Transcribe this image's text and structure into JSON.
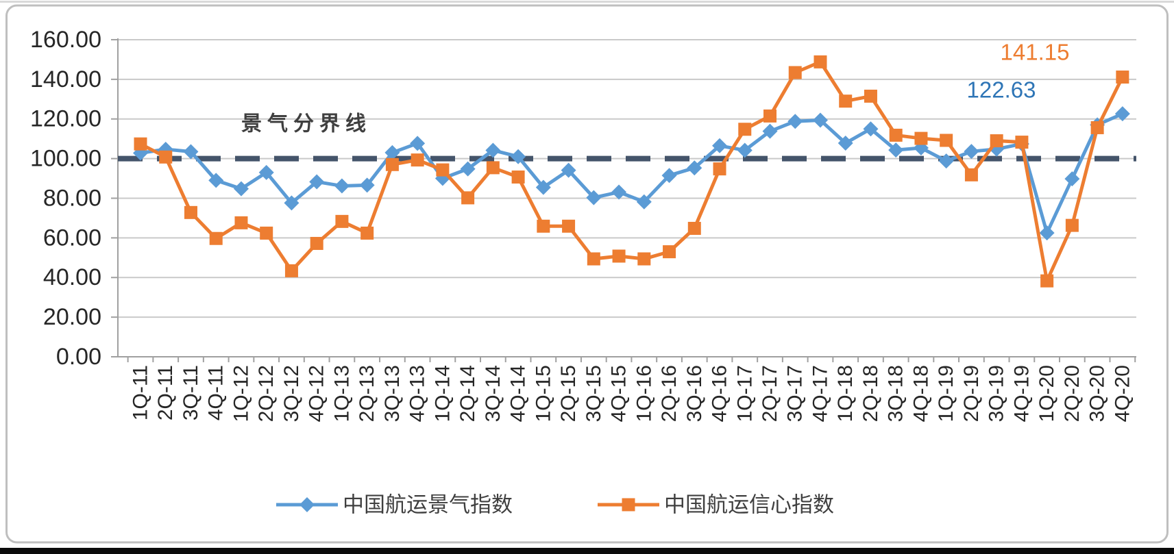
{
  "chart_data": {
    "type": "line",
    "title": "",
    "xlabel": "",
    "ylabel": "",
    "ylim": [
      0,
      160
    ],
    "y_tick_step": 20,
    "grid": true,
    "legend_position": "bottom",
    "y_tick_labels": [
      "0.00",
      "20.00",
      "40.00",
      "60.00",
      "80.00",
      "100.00",
      "120.00",
      "140.00",
      "160.00"
    ],
    "categories": [
      "1Q-11",
      "2Q-11",
      "3Q-11",
      "4Q-11",
      "1Q-12",
      "2Q-12",
      "3Q-12",
      "4Q-12",
      "1Q-13",
      "2Q-13",
      "3Q-13",
      "4Q-13",
      "1Q-14",
      "2Q-14",
      "3Q-14",
      "4Q-14",
      "1Q-15",
      "2Q-15",
      "3Q-15",
      "4Q-15",
      "1Q-16",
      "2Q-16",
      "3Q-16",
      "4Q-16",
      "1Q-17",
      "2Q-17",
      "3Q-17",
      "4Q-17",
      "1Q-18",
      "2Q-18",
      "3Q-18",
      "4Q-18",
      "1Q-19",
      "2Q-19",
      "3Q-19",
      "4Q-19",
      "1Q-20",
      "2Q-20",
      "3Q-20",
      "4Q-20"
    ],
    "series": [
      {
        "name": "中国航运景气指数",
        "color": "#5B9BD5",
        "marker": "diamond",
        "values": [
          102.8,
          104.7,
          103.5,
          89.0,
          84.8,
          93.0,
          77.6,
          88.3,
          86.2,
          86.6,
          103.0,
          107.7,
          90.0,
          94.8,
          104.2,
          101.0,
          85.5,
          94.1,
          80.3,
          83.1,
          78.2,
          91.5,
          95.3,
          106.5,
          104.2,
          113.8,
          118.8,
          119.4,
          107.8,
          115.0,
          104.3,
          105.4,
          98.8,
          103.6,
          104.8,
          107.4,
          62.5,
          89.8,
          117.0,
          122.63
        ]
      },
      {
        "name": "中国航运信心指数",
        "color": "#ED7D31",
        "marker": "square",
        "values": [
          107.4,
          100.8,
          72.8,
          59.7,
          67.6,
          62.4,
          43.4,
          57.2,
          68.3,
          62.4,
          97.0,
          99.3,
          94.3,
          80.2,
          95.4,
          90.7,
          65.9,
          65.9,
          49.4,
          50.8,
          49.4,
          53.0,
          64.8,
          94.8,
          114.8,
          121.5,
          143.4,
          148.8,
          129.0,
          131.5,
          111.8,
          110.2,
          109.2,
          91.8,
          109.0,
          108.3,
          38.3,
          66.3,
          115.6,
          141.15
        ]
      }
    ],
    "reference_line": {
      "value": 100,
      "label": "景气分界线",
      "color": "#44546A"
    },
    "annotations": [
      {
        "series": "中国航运景气指数",
        "text": "122.63",
        "color": "#2E75B6"
      },
      {
        "series": "中国航运信心指数",
        "text": "141.15",
        "color": "#ED7D31"
      }
    ]
  },
  "frame": {
    "border_color": "#BFBFBF",
    "bottom_bar_color": "#0B0B0B",
    "gridline_color": "#C9C9C9",
    "axis_color": "#A0A0A0",
    "tick_label_color": "#262626",
    "legend_text_color": "#3F3F3F"
  }
}
